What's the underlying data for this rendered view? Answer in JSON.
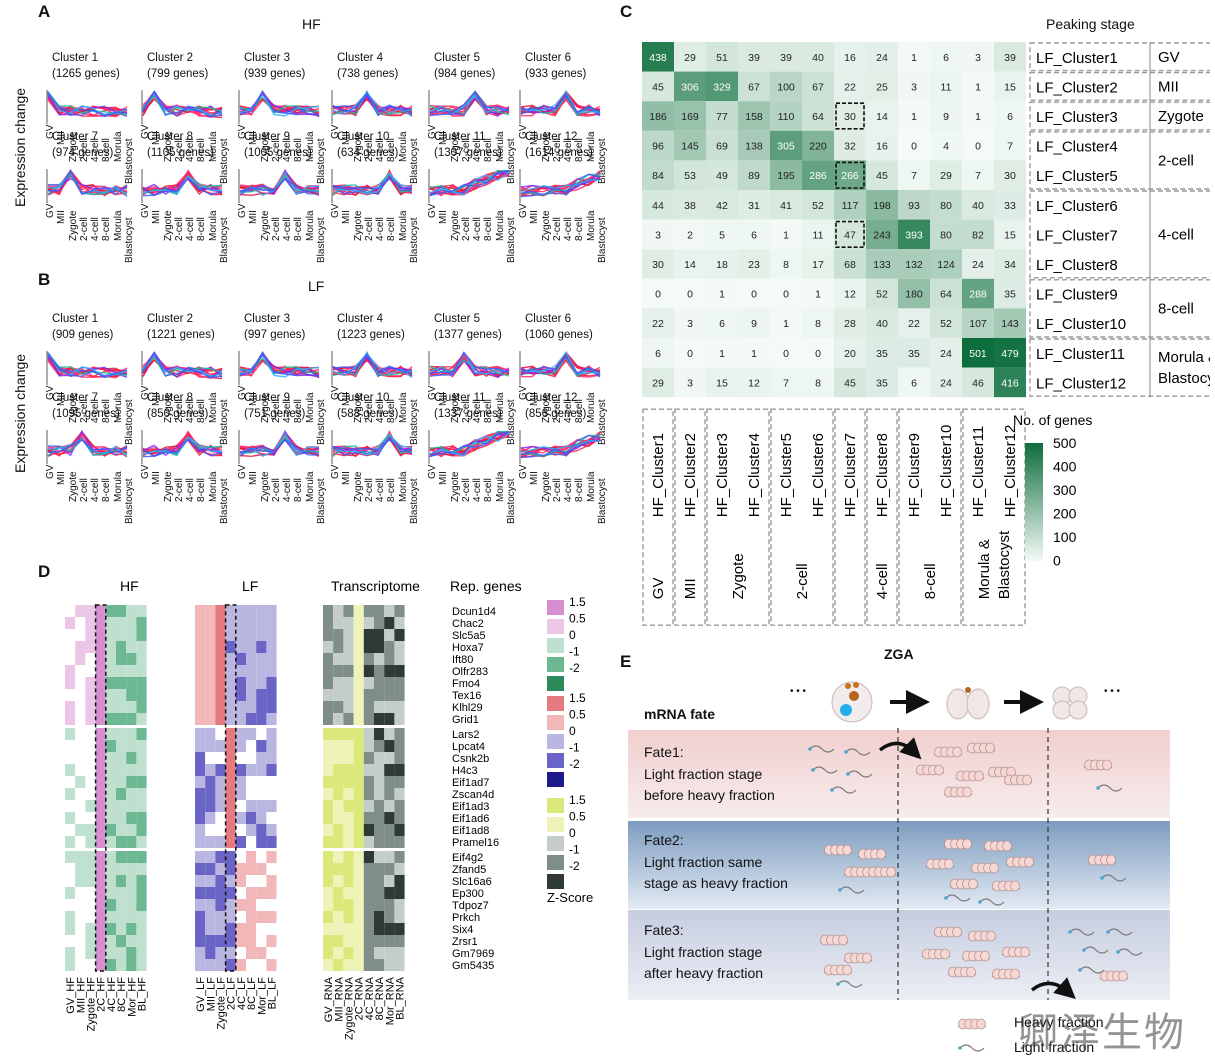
{
  "panels": {
    "A": {
      "label": "A",
      "title": "HF"
    },
    "B": {
      "label": "B",
      "title": "LF"
    },
    "C": {
      "label": "C"
    },
    "D": {
      "label": "D"
    },
    "E": {
      "label": "E"
    }
  },
  "ab_ylabel": "Expression change",
  "stages": [
    "GV",
    "MII",
    "Zygote",
    "2-cell",
    "4-cell",
    "8-cell",
    "Morula",
    "Blastocyst"
  ],
  "hf_clusters": [
    {
      "name": "Cluster 1",
      "genes": "(1265 genes)",
      "peak": 0
    },
    {
      "name": "Cluster 2",
      "genes": "(799 genes)",
      "peak": 1
    },
    {
      "name": "Cluster 3",
      "genes": "(939 genes)",
      "peak": 2
    },
    {
      "name": "Cluster 4",
      "genes": "(738 genes)",
      "peak": 3
    },
    {
      "name": "Cluster 5",
      "genes": "(984 genes)",
      "peak": 4
    },
    {
      "name": "Cluster 6",
      "genes": "(933 genes)",
      "peak": 4
    },
    {
      "name": "Cluster 7",
      "genes": "(974 genes)",
      "peak": 2
    },
    {
      "name": "Cluster 8",
      "genes": "(1105 genes)",
      "peak": 4
    },
    {
      "name": "Cluster 9",
      "genes": "(1005 genes)",
      "peak": 4
    },
    {
      "name": "Cluster 10",
      "genes": "(634 genes)",
      "peak": 5
    },
    {
      "name": "Cluster 11",
      "genes": "(1307 genes)",
      "peak": 6
    },
    {
      "name": "Cluster 12",
      "genes": "(1614 genes)",
      "peak": 7
    }
  ],
  "lf_clusters": [
    {
      "name": "Cluster 1",
      "genes": "(909 genes)",
      "peak": 0
    },
    {
      "name": "Cluster 2",
      "genes": "(1221 genes)",
      "peak": 1
    },
    {
      "name": "Cluster 3",
      "genes": "(997 genes)",
      "peak": 2
    },
    {
      "name": "Cluster 4",
      "genes": "(1223 genes)",
      "peak": 3
    },
    {
      "name": "Cluster 5",
      "genes": "(1377 genes)",
      "peak": 3
    },
    {
      "name": "Cluster 6",
      "genes": "(1060 genes)",
      "peak": 4
    },
    {
      "name": "Cluster 7",
      "genes": "(1095 genes)",
      "peak": 3
    },
    {
      "name": "Cluster 8",
      "genes": "(850 genes)",
      "peak": 4
    },
    {
      "name": "Cluster 9",
      "genes": "(751 genes)",
      "peak": 4
    },
    {
      "name": "Cluster 10",
      "genes": "(588 genes)",
      "peak": 5
    },
    {
      "name": "Cluster 11",
      "genes": "(1337 genes)",
      "peak": 6
    },
    {
      "name": "Cluster 12",
      "genes": "(856 genes)",
      "peak": 7
    }
  ],
  "chart_data": {
    "type": "heatmap",
    "title": "",
    "rows": [
      "LF_Cluster1",
      "LF_Cluster2",
      "LF_Cluster3",
      "LF_Cluster4",
      "LF_Cluster5",
      "LF_Cluster6",
      "LF_Cluster7",
      "LF_Cluster8",
      "LF_Cluster9",
      "LF_Cluster10",
      "LF_Cluster11",
      "LF_Cluster12"
    ],
    "columns": [
      "HF_Cluster1",
      "HF_Cluster2",
      "HF_Cluster3",
      "HF_Cluster4",
      "HF_Cluster5",
      "HF_Cluster6",
      "HF_Cluster7",
      "HF_Cluster8",
      "HF_Cluster9",
      "HF_Cluster10",
      "HF_Cluster11",
      "HF_Cluster12"
    ],
    "values": [
      [
        438,
        29,
        51,
        39,
        39,
        40,
        16,
        24,
        1,
        6,
        3,
        39
      ],
      [
        45,
        306,
        329,
        67,
        100,
        67,
        22,
        25,
        3,
        11,
        1,
        15
      ],
      [
        186,
        169,
        77,
        158,
        110,
        64,
        30,
        14,
        1,
        9,
        1,
        6
      ],
      [
        96,
        145,
        69,
        138,
        305,
        220,
        32,
        16,
        0,
        4,
        0,
        7
      ],
      [
        84,
        53,
        49,
        89,
        195,
        286,
        266,
        45,
        7,
        29,
        7,
        30
      ],
      [
        44,
        38,
        42,
        31,
        41,
        52,
        117,
        198,
        93,
        80,
        40,
        33
      ],
      [
        3,
        2,
        5,
        6,
        1,
        11,
        47,
        243,
        393,
        80,
        82,
        15
      ],
      [
        30,
        14,
        18,
        23,
        8,
        17,
        68,
        133,
        132,
        124,
        24,
        34
      ],
      [
        0,
        0,
        1,
        0,
        0,
        1,
        12,
        52,
        180,
        64,
        288,
        35
      ],
      [
        22,
        3,
        6,
        9,
        1,
        8,
        28,
        40,
        22,
        52,
        107,
        143
      ],
      [
        6,
        0,
        1,
        1,
        0,
        0,
        20,
        35,
        35,
        24,
        501,
        479
      ],
      [
        29,
        3,
        15,
        12,
        7,
        8,
        45,
        35,
        6,
        24,
        46,
        416
      ]
    ],
    "highlighted": [
      [
        2,
        6
      ],
      [
        4,
        6
      ],
      [
        6,
        6
      ]
    ],
    "peaking_stage_title": "Peaking stage",
    "row_stage_groups": [
      {
        "label": "GV",
        "rows": [
          0
        ]
      },
      {
        "label": "MII",
        "rows": [
          1
        ]
      },
      {
        "label": "Zygote",
        "rows": [
          2
        ]
      },
      {
        "label": "2-cell",
        "rows": [
          3,
          4
        ]
      },
      {
        "label": "4-cell",
        "rows": [
          5,
          6,
          7
        ]
      },
      {
        "label": "8-cell",
        "rows": [
          8,
          9
        ]
      },
      {
        "label": "Morula &\nBlastocyst",
        "rows": [
          10,
          11
        ]
      }
    ],
    "col_stage_groups": [
      {
        "label": "GV",
        "cols": [
          0
        ]
      },
      {
        "label": "MII",
        "cols": [
          1
        ]
      },
      {
        "label": "Zygote",
        "cols": [
          2,
          3
        ]
      },
      {
        "label": "2-cell",
        "cols": [
          4,
          5
        ]
      },
      {
        "label": "",
        "cols": [
          6
        ]
      },
      {
        "label": "4-cell",
        "cols": [
          7
        ]
      },
      {
        "label": "8-cell",
        "cols": [
          8,
          9
        ]
      },
      {
        "label": "Morula &\nBlastocyst",
        "cols": [
          10,
          11
        ]
      }
    ],
    "legend_title": "No. of genes",
    "legend_ticks": [
      500,
      400,
      300,
      200,
      100,
      0
    ],
    "colors": {
      "low": "#f4faf6",
      "high": "#0d6e3c"
    }
  },
  "panel_d": {
    "headers": [
      "HF",
      "LF",
      "Transcriptome",
      "Rep. genes"
    ],
    "genes": [
      "Dcun1d4",
      "Chac2",
      "Slc5a5",
      "Hoxa7",
      "Ift80",
      "Olfr283",
      "Fmo4",
      "Tex16",
      "Klhl29",
      "Grid1",
      "Lars2",
      "Lpcat4",
      "Csnk2b",
      "H4c3",
      "Eif1ad7",
      "Zscan4d",
      "Eif1ad3",
      "Eif1ad6",
      "Eif1ad8",
      "Pramel16",
      "Eif4g2",
      "Zfand5",
      "Slc16a6",
      "Ep300",
      "Tdpoz7",
      "Prkch",
      "Six4",
      "Zrsr1",
      "Gm7969",
      "Gm5435"
    ],
    "hf_cols": [
      "GV_HF",
      "MII_HF",
      "Zygote_HF",
      "2C_HF",
      "4C_HF",
      "8C_HF",
      "Mor_HF",
      "BL_HF"
    ],
    "lf_cols": [
      "GV_LF",
      "MII_LF",
      "Zygote_LF",
      "2C_LF",
      "4C_LF",
      "8C_LF",
      "Mor_LF",
      "BL_LF"
    ],
    "rna_cols": [
      "GV_RNA",
      "MII_RNA",
      "Zygote_RNA",
      "2C_RNA",
      "4C_RNA",
      "8C_RNA",
      "Mor_RNA",
      "BL_RNA"
    ],
    "legend_hf": [
      "1.5",
      "0.5",
      "0",
      "-1",
      "-2"
    ],
    "legend_lf": [
      "1.5",
      "0.5",
      "0",
      "-1",
      "-2"
    ],
    "legend_rna": [
      "1.5",
      "0.5",
      "0",
      "-1",
      "-2"
    ],
    "zscore_label": "Z-Score"
  },
  "panel_e": {
    "zga_label": "ZGA",
    "ellipsis": "• • •",
    "mrna_fate_label": "mRNA fate",
    "fates": [
      {
        "title": "Fate1:",
        "line1": "Light fraction stage",
        "line2": "before heavy fraction"
      },
      {
        "title": "Fate2:",
        "line1": "Light fraction same",
        "line2": "stage as heavy fraction"
      },
      {
        "title": "Fate3:",
        "line1": "Light fraction stage",
        "line2": "after heavy fraction"
      }
    ],
    "legend_heavy": "Heavy fraction",
    "legend_light": "Light fraction"
  },
  "watermark": "卿泽生物"
}
